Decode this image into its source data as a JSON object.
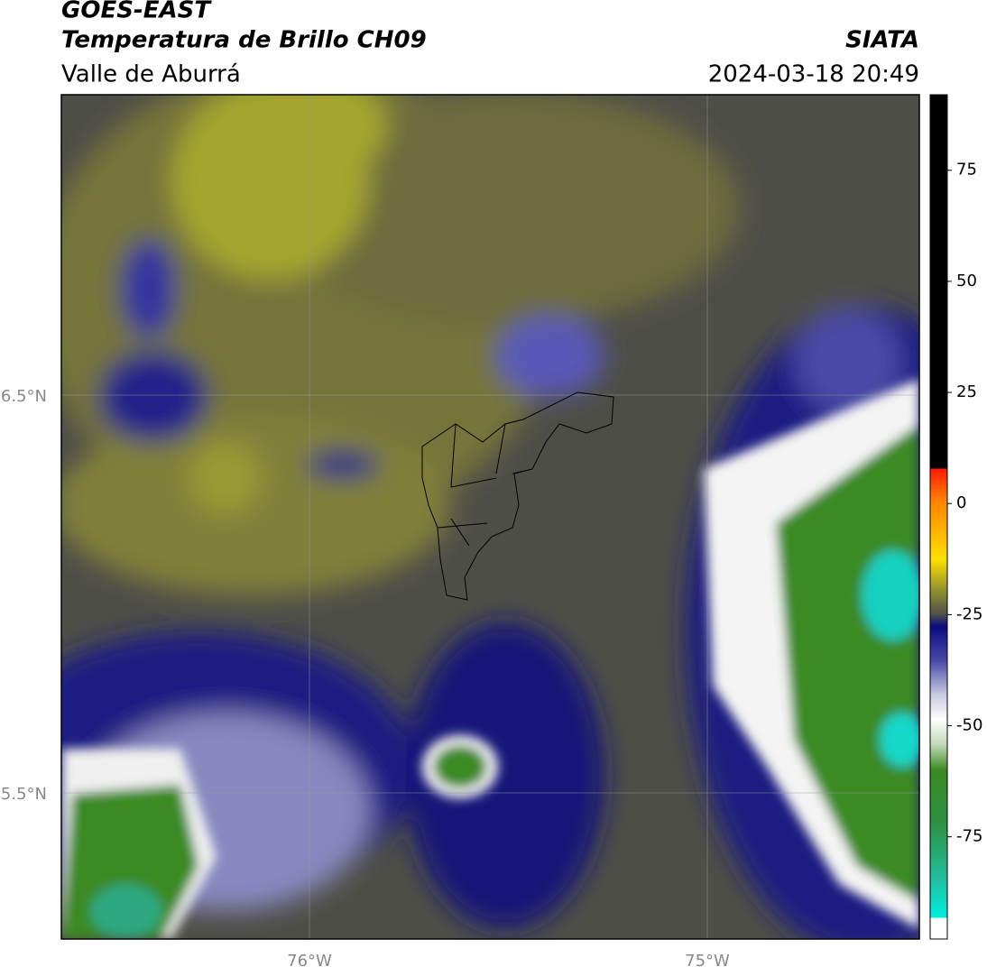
{
  "header": {
    "title": "GOES-EAST",
    "subtitle": "Temperatura de Brillo CH09",
    "region": "Valle de Aburrá",
    "source": "SIATA",
    "timestamp": "2024-03-18 20:49"
  },
  "map": {
    "lat_ticks": [
      "6.5°N",
      "5.5°N"
    ],
    "lon_ticks": [
      "76°W",
      "75°W"
    ]
  },
  "colorbar": {
    "lim": [
      -98,
      92
    ],
    "ticks": [
      75,
      50,
      25,
      0,
      -25,
      -50,
      -75
    ]
  }
}
